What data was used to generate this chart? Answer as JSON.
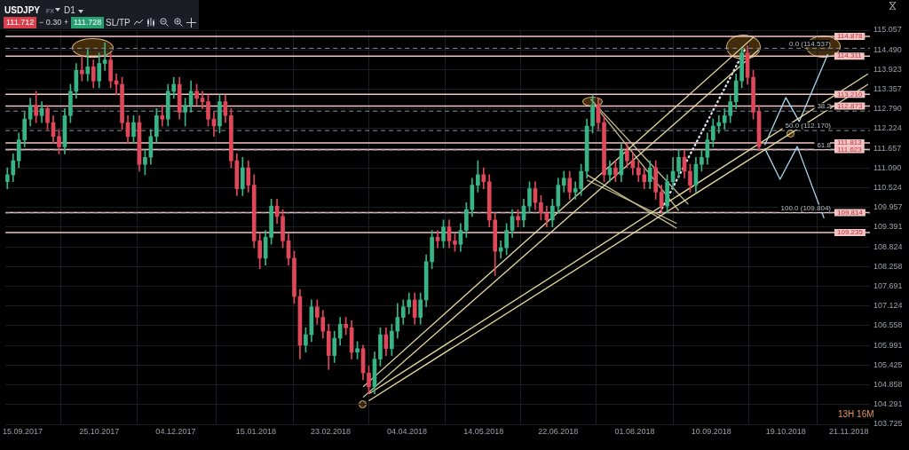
{
  "chart_data": {
    "type": "candlestick",
    "title": "USDJPY",
    "x": [
      "2017-09-07",
      "2017-09-10",
      "2017-09-13",
      "2017-09-16",
      "2017-09-19",
      "2017-09-22",
      "2017-09-25",
      "2017-09-28",
      "2017-10-01",
      "2017-10-04",
      "2017-10-07",
      "2017-10-10",
      "2017-10-13",
      "2017-10-16",
      "2017-10-19",
      "2017-10-22",
      "2017-10-25",
      "2017-10-28",
      "2017-10-31",
      "2017-11-03",
      "2017-11-06",
      "2017-11-09",
      "2017-11-12",
      "2017-11-15",
      "2017-11-18",
      "2017-11-21",
      "2017-11-24",
      "2017-11-27",
      "2017-11-30",
      "2017-12-03",
      "2017-12-06",
      "2017-12-09",
      "2017-12-12",
      "2017-12-15",
      "2017-12-18",
      "2017-12-21",
      "2017-12-24",
      "2017-12-27",
      "2017-12-30",
      "2018-01-02",
      "2018-01-05",
      "2018-01-08",
      "2018-01-11",
      "2018-01-14",
      "2018-01-17",
      "2018-01-20",
      "2018-01-23",
      "2018-01-26",
      "2018-01-29",
      "2018-02-01",
      "2018-02-04",
      "2018-02-07",
      "2018-02-10",
      "2018-02-13",
      "2018-02-16",
      "2018-02-19",
      "2018-02-22",
      "2018-02-25",
      "2018-02-28",
      "2018-03-03",
      "2018-03-06",
      "2018-03-09",
      "2018-03-12",
      "2018-03-15",
      "2018-03-18",
      "2018-03-21",
      "2018-03-24",
      "2018-03-27",
      "2018-03-30",
      "2018-04-02",
      "2018-04-05",
      "2018-04-08",
      "2018-04-11",
      "2018-04-14",
      "2018-04-17",
      "2018-04-20",
      "2018-04-23",
      "2018-04-26",
      "2018-04-29",
      "2018-05-02",
      "2018-05-05",
      "2018-05-08",
      "2018-05-11",
      "2018-05-14",
      "2018-05-17",
      "2018-05-20",
      "2018-05-23",
      "2018-05-26",
      "2018-05-29",
      "2018-06-01",
      "2018-06-04",
      "2018-06-07",
      "2018-06-10",
      "2018-06-13",
      "2018-06-16",
      "2018-06-19",
      "2018-06-22",
      "2018-06-25",
      "2018-06-28",
      "2018-07-01",
      "2018-07-04",
      "2018-07-07",
      "2018-07-10",
      "2018-07-13",
      "2018-07-16",
      "2018-07-19",
      "2018-07-22",
      "2018-07-25",
      "2018-07-28",
      "2018-07-31",
      "2018-08-03",
      "2018-08-06",
      "2018-08-09",
      "2018-08-12",
      "2018-08-15",
      "2018-08-18",
      "2018-08-21",
      "2018-08-24",
      "2018-08-27",
      "2018-08-30",
      "2018-09-02",
      "2018-09-05",
      "2018-09-08",
      "2018-09-11",
      "2018-09-14",
      "2018-09-17",
      "2018-09-20",
      "2018-09-23",
      "2018-09-26",
      "2018-09-29",
      "2018-10-02",
      "2018-10-05"
    ],
    "ohlc": [
      [
        110.7,
        111.1,
        110.5,
        110.9
      ],
      [
        110.9,
        111.5,
        110.7,
        111.3
      ],
      [
        111.3,
        112.1,
        111.1,
        111.9
      ],
      [
        111.9,
        112.7,
        111.7,
        112.5
      ],
      [
        112.5,
        113.1,
        112.3,
        112.9
      ],
      [
        112.9,
        113.3,
        112.4,
        112.6
      ],
      [
        112.6,
        113.0,
        112.4,
        112.8
      ],
      [
        112.8,
        112.9,
        112.2,
        112.4
      ],
      [
        112.4,
        112.6,
        111.8,
        112.0
      ],
      [
        112.0,
        112.2,
        111.5,
        111.7
      ],
      [
        111.7,
        112.8,
        111.5,
        112.6
      ],
      [
        112.6,
        113.5,
        112.4,
        113.3
      ],
      [
        113.3,
        114.1,
        113.1,
        113.9
      ],
      [
        113.9,
        114.3,
        113.6,
        113.8
      ],
      [
        113.8,
        114.5,
        113.6,
        114.0
      ],
      [
        114.0,
        114.2,
        113.4,
        113.6
      ],
      [
        113.6,
        114.4,
        113.4,
        114.1
      ],
      [
        114.1,
        114.7,
        113.9,
        114.2
      ],
      [
        114.2,
        114.4,
        113.4,
        113.6
      ],
      [
        113.6,
        113.8,
        113.2,
        113.5
      ],
      [
        113.5,
        113.7,
        112.2,
        112.4
      ],
      [
        112.4,
        112.6,
        111.8,
        112.0
      ],
      [
        112.0,
        112.6,
        111.8,
        112.4
      ],
      [
        112.4,
        112.6,
        111.0,
        111.2
      ],
      [
        111.2,
        111.6,
        110.9,
        111.4
      ],
      [
        111.4,
        112.2,
        111.2,
        112.0
      ],
      [
        112.0,
        112.8,
        111.8,
        112.6
      ],
      [
        112.6,
        112.9,
        112.3,
        112.5
      ],
      [
        112.5,
        113.5,
        112.3,
        113.3
      ],
      [
        113.3,
        113.7,
        113.1,
        113.5
      ],
      [
        113.5,
        113.7,
        112.5,
        112.7
      ],
      [
        112.7,
        113.1,
        112.3,
        112.9
      ],
      [
        112.9,
        113.6,
        112.7,
        113.3
      ],
      [
        113.3,
        113.5,
        112.9,
        113.1
      ],
      [
        113.1,
        113.3,
        112.8,
        113.0
      ],
      [
        113.0,
        113.2,
        112.3,
        112.5
      ],
      [
        112.5,
        112.7,
        112.0,
        112.3
      ],
      [
        112.3,
        113.2,
        112.1,
        113.0
      ],
      [
        113.0,
        113.2,
        112.4,
        112.6
      ],
      [
        112.6,
        112.8,
        111.1,
        111.3
      ],
      [
        111.3,
        111.5,
        110.3,
        110.5
      ],
      [
        110.5,
        111.4,
        110.3,
        111.1
      ],
      [
        111.1,
        111.3,
        110.4,
        110.6
      ],
      [
        110.6,
        110.9,
        108.8,
        109.0
      ],
      [
        109.0,
        109.2,
        108.2,
        108.5
      ],
      [
        108.5,
        109.3,
        108.3,
        109.1
      ],
      [
        109.1,
        110.2,
        108.9,
        110.0
      ],
      [
        110.0,
        110.2,
        109.5,
        109.7
      ],
      [
        109.7,
        109.9,
        108.8,
        109.0
      ],
      [
        109.0,
        109.2,
        108.3,
        108.5
      ],
      [
        108.5,
        108.7,
        107.2,
        107.4
      ],
      [
        107.4,
        107.6,
        105.6,
        106.0
      ],
      [
        106.0,
        106.5,
        105.8,
        106.3
      ],
      [
        106.3,
        107.3,
        106.1,
        107.1
      ],
      [
        107.1,
        107.3,
        106.6,
        106.8
      ],
      [
        106.8,
        107.0,
        106.2,
        106.4
      ],
      [
        106.4,
        106.6,
        105.3,
        105.7
      ],
      [
        105.7,
        106.4,
        105.5,
        106.2
      ],
      [
        106.2,
        106.8,
        106.0,
        106.6
      ],
      [
        106.6,
        106.8,
        106.3,
        106.5
      ],
      [
        106.5,
        106.7,
        105.6,
        105.8
      ],
      [
        105.8,
        106.1,
        105.6,
        105.9
      ],
      [
        105.9,
        106.0,
        105.0,
        105.2
      ],
      [
        105.2,
        105.4,
        104.6,
        104.8
      ],
      [
        104.8,
        105.8,
        104.6,
        105.6
      ],
      [
        105.6,
        106.5,
        105.4,
        106.3
      ],
      [
        106.3,
        106.5,
        105.7,
        105.9
      ],
      [
        105.9,
        106.6,
        105.7,
        106.4
      ],
      [
        106.4,
        107.2,
        106.2,
        106.8
      ],
      [
        106.8,
        107.3,
        106.6,
        107.1
      ],
      [
        107.1,
        107.5,
        106.9,
        107.3
      ],
      [
        107.3,
        107.5,
        106.6,
        106.8
      ],
      [
        106.8,
        107.5,
        106.6,
        107.3
      ],
      [
        107.3,
        108.6,
        107.1,
        108.4
      ],
      [
        108.4,
        109.3,
        108.2,
        109.1
      ],
      [
        109.1,
        109.3,
        108.8,
        109.0
      ],
      [
        109.0,
        109.6,
        108.8,
        109.4
      ],
      [
        109.4,
        109.6,
        108.8,
        109.0
      ],
      [
        109.0,
        109.2,
        108.7,
        108.9
      ],
      [
        108.9,
        109.5,
        108.7,
        109.3
      ],
      [
        109.3,
        110.1,
        109.1,
        109.9
      ],
      [
        109.9,
        110.8,
        109.7,
        110.6
      ],
      [
        110.6,
        111.3,
        110.4,
        110.9
      ],
      [
        110.9,
        111.1,
        110.5,
        110.7
      ],
      [
        110.7,
        110.9,
        109.4,
        109.6
      ],
      [
        109.6,
        109.8,
        108.0,
        108.7
      ],
      [
        108.7,
        109.0,
        108.5,
        108.8
      ],
      [
        108.8,
        109.5,
        108.6,
        109.3
      ],
      [
        109.3,
        109.9,
        109.1,
        109.7
      ],
      [
        109.7,
        109.9,
        109.4,
        109.6
      ],
      [
        109.6,
        110.2,
        109.4,
        110.0
      ],
      [
        110.0,
        110.7,
        109.8,
        110.5
      ],
      [
        110.5,
        110.7,
        109.9,
        110.1
      ],
      [
        110.1,
        110.3,
        109.6,
        109.8
      ],
      [
        109.8,
        110.0,
        109.4,
        109.6
      ],
      [
        109.6,
        110.2,
        109.4,
        110.0
      ],
      [
        110.0,
        110.8,
        109.8,
        110.6
      ],
      [
        110.6,
        111.0,
        110.4,
        110.8
      ],
      [
        110.8,
        111.0,
        110.2,
        110.4
      ],
      [
        110.4,
        110.7,
        110.2,
        110.5
      ],
      [
        110.5,
        111.2,
        110.3,
        111.0
      ],
      [
        111.0,
        112.5,
        110.8,
        112.3
      ],
      [
        112.3,
        113.2,
        112.1,
        112.9
      ],
      [
        112.9,
        113.1,
        112.2,
        112.4
      ],
      [
        112.4,
        112.6,
        110.7,
        110.9
      ],
      [
        110.9,
        111.3,
        110.7,
        111.1
      ],
      [
        111.1,
        111.3,
        110.7,
        110.9
      ],
      [
        110.9,
        111.8,
        110.7,
        111.6
      ],
      [
        111.6,
        111.8,
        111.1,
        111.3
      ],
      [
        111.3,
        111.5,
        110.9,
        111.1
      ],
      [
        111.1,
        111.3,
        110.7,
        110.9
      ],
      [
        110.9,
        111.1,
        110.5,
        110.7
      ],
      [
        110.7,
        111.3,
        110.5,
        111.1
      ],
      [
        111.1,
        111.3,
        110.2,
        110.4
      ],
      [
        110.4,
        110.6,
        109.8,
        110.0
      ],
      [
        110.0,
        110.9,
        109.8,
        110.7
      ],
      [
        110.7,
        111.4,
        110.5,
        111.0
      ],
      [
        111.0,
        111.6,
        110.8,
        111.4
      ],
      [
        111.4,
        111.6,
        110.8,
        111.0
      ],
      [
        111.0,
        111.2,
        110.4,
        110.6
      ],
      [
        110.6,
        111.4,
        110.4,
        111.2
      ],
      [
        111.2,
        111.6,
        111.0,
        111.4
      ],
      [
        111.4,
        112.1,
        111.2,
        111.9
      ],
      [
        111.9,
        112.5,
        111.7,
        112.3
      ],
      [
        112.3,
        112.6,
        112.1,
        112.4
      ],
      [
        112.4,
        112.8,
        112.2,
        112.6
      ],
      [
        112.6,
        113.2,
        112.4,
        113.0
      ],
      [
        113.0,
        113.8,
        112.8,
        113.6
      ],
      [
        113.6,
        114.54,
        113.4,
        114.4
      ],
      [
        114.4,
        114.6,
        113.5,
        113.7
      ],
      [
        113.7,
        113.9,
        112.5,
        112.7
      ],
      [
        112.7,
        112.9,
        111.6,
        111.71
      ]
    ],
    "xlim": [
      "2017-09-06",
      "2018-12-02"
    ],
    "xticks": [
      {
        "value": "2017-09-15",
        "label": "15.09.2017"
      },
      {
        "value": "2017-10-25",
        "label": "25.10.2017"
      },
      {
        "value": "2017-12-04",
        "label": "04.12.2017"
      },
      {
        "value": "2018-01-15",
        "label": "15.01.2018"
      },
      {
        "value": "2018-02-23",
        "label": "23.02.2018"
      },
      {
        "value": "2018-04-04",
        "label": "04.04.2018"
      },
      {
        "value": "2018-05-14",
        "label": "14.05.2018"
      },
      {
        "value": "2018-06-22",
        "label": "22.06.2018"
      },
      {
        "value": "2018-08-01",
        "label": "01.08.2018"
      },
      {
        "value": "2018-09-10",
        "label": "10.09.2018"
      },
      {
        "value": "2018-10-19",
        "label": "19.10.2018"
      },
      {
        "value": "2018-11-21",
        "label": "21.11.2018"
      }
    ],
    "ylim": [
      103.725,
      115.057
    ],
    "yticks": [
      103.725,
      104.291,
      104.858,
      105.425,
      105.991,
      106.558,
      107.124,
      107.691,
      108.258,
      108.824,
      109.391,
      109.957,
      110.524,
      {
        "value": 111.09,
        "label": "111.090"
      },
      111.657,
      112.224,
      {
        "value": 112.79,
        "label": "112.790"
      },
      113.357,
      113.923,
      {
        "value": 114.49,
        "label": "114.490"
      },
      115.057
    ],
    "grid": true,
    "series": [
      {
        "type": "line",
        "color": "#e8dca0",
        "x": [
          "2018-03-12",
          "2018-10-02"
        ],
        "values": [
          104.8,
          114.85
        ]
      },
      {
        "type": "line",
        "color": "#e8dca0",
        "x": [
          "2018-03-12",
          "2018-10-05"
        ],
        "values": [
          104.5,
          114.5
        ]
      },
      {
        "type": "line",
        "color": "#e8dca0",
        "x": [
          "2018-03-15",
          "2018-12-01"
        ],
        "values": [
          104.6,
          113.8
        ]
      },
      {
        "type": "line",
        "color": "#e8dca0",
        "x": [
          "2018-03-15",
          "2018-12-01"
        ],
        "values": [
          104.4,
          113.5
        ]
      },
      {
        "type": "line",
        "color": "#c9bf8e",
        "x": [
          "2018-07-09",
          "2018-08-29"
        ],
        "values": [
          113.07,
          110.05
        ]
      },
      {
        "type": "line",
        "color": "#c9bf8e",
        "x": [
          "2018-07-11",
          "2018-08-24"
        ],
        "values": [
          112.91,
          109.87
        ]
      },
      {
        "type": "line",
        "color": "#c9bf8e",
        "x": [
          "2018-07-07",
          "2018-08-23"
        ],
        "values": [
          110.9,
          109.36
        ]
      },
      {
        "type": "line",
        "color": "#c9bf8e",
        "x": [
          "2018-07-07",
          "2018-08-23"
        ],
        "values": [
          110.75,
          109.5
        ]
      },
      {
        "type": "line",
        "color": "#dfe6f0",
        "line_style": "dashed",
        "x": [
          "2018-08-14",
          "2018-09-28"
        ],
        "values": [
          109.8,
          114.54
        ]
      },
      {
        "type": "line",
        "color": "#a8d8f0",
        "x": [
          "2018-10-08",
          "2018-10-19",
          "2018-10-26",
          "2018-11-10"
        ],
        "values": [
          111.75,
          113.12,
          112.43,
          114.37
        ]
      },
      {
        "type": "line",
        "color": "#a8d8f0",
        "x": [
          "2018-10-08",
          "2018-10-16",
          "2018-10-25",
          "2018-11-08"
        ],
        "values": [
          111.66,
          110.77,
          111.71,
          109.65
        ]
      }
    ],
    "ref_lines": [
      {
        "axis": "y",
        "value": 114.878,
        "label": "114.878",
        "color": "#f2c4c4"
      },
      {
        "axis": "y",
        "value": 114.311,
        "label": "114.311",
        "color": "#f2c4c4"
      },
      {
        "axis": "y",
        "value": 113.21,
        "label": "113.210",
        "color": "#f2c4c4"
      },
      {
        "axis": "y",
        "value": 112.873,
        "label": "112.873",
        "color": "#f2c4c4"
      },
      {
        "axis": "y",
        "value": 111.813,
        "label": "111.813",
        "color": "#f2c4c4"
      },
      {
        "axis": "y",
        "value": 111.623,
        "label": "111.623",
        "color": "#f2c4c4"
      },
      {
        "axis": "y",
        "value": 109.814,
        "label": "109.814",
        "color": "#f2c4c4"
      },
      {
        "axis": "y",
        "value": 109.235,
        "label": "109.235",
        "color": "#f2c4c4"
      },
      {
        "axis": "y",
        "value": 114.537,
        "label": "0.0 (114.537)",
        "color": "#8c929c",
        "line_style": "dashed"
      },
      {
        "axis": "y",
        "value": 112.729,
        "color": "#8c929c",
        "line_style": "dashed"
      },
      {
        "axis": "y",
        "value": 112.17,
        "label": "50.0 (112.170)",
        "color": "#8c929c",
        "line_style": "dashed"
      },
      {
        "axis": "y",
        "value": 111.612,
        "color": "#8c929c",
        "line_style": "dashed"
      },
      {
        "axis": "y",
        "value": 109.804,
        "label": "100.0 (109.804)",
        "color": "#8c929c",
        "line_style": "dashed"
      }
    ],
    "annotations": [
      "FX",
      "D1",
      "111.712",
      "− 0.30",
      "+",
      "111.728",
      "SL/TP",
      "13H 16M",
      {
        "text": "38.2",
        "y": 112.729
      },
      {
        "text": "61.8",
        "y": 111.612
      }
    ]
  }
}
